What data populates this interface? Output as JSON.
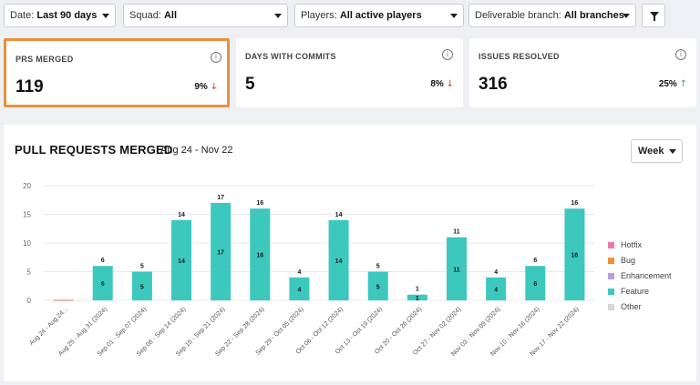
{
  "filters": {
    "date": {
      "label": "Date:",
      "value": "Last 90 days"
    },
    "squad": {
      "label": "Squad:",
      "value": "All"
    },
    "players": {
      "label": "Players:",
      "value": "All active players"
    },
    "branch": {
      "label": "Deliverable branch:",
      "value": "All branches"
    }
  },
  "cards": [
    {
      "label": "PRS MERGED",
      "value": "119",
      "delta": "9%",
      "direction": "down"
    },
    {
      "label": "DAYS WITH COMMITS",
      "value": "5",
      "delta": "8%",
      "direction": "down"
    },
    {
      "label": "ISSUES RESOLVED",
      "value": "316",
      "delta": "25%",
      "direction": "up"
    }
  ],
  "panel": {
    "title": "PULL REQUESTS MERGED",
    "range": "Aug 24 - Nov 22",
    "interval": "Week"
  },
  "legend": [
    {
      "name": "Hotfix",
      "color": "#e97bb0"
    },
    {
      "name": "Bug",
      "color": "#ef8f3b"
    },
    {
      "name": "Enhancement",
      "color": "#b99be6"
    },
    {
      "name": "Feature",
      "color": "#3cc8bd"
    },
    {
      "name": "Other",
      "color": "#d3d6da"
    }
  ],
  "chart_data": {
    "type": "bar",
    "stacked": true,
    "ylim": [
      0,
      20
    ],
    "yticks": [
      0,
      5,
      10,
      15,
      20
    ],
    "grid": true,
    "legend_position": "right",
    "categories": [
      "Aug 24 - Aug 24...",
      "Aug 25 - Aug 31 (2024)",
      "Sep 01 - Sep 07 (2024)",
      "Sep 08 - Sep 14 (2024)",
      "Sep 15 - Sep 21 (2024)",
      "Sep 22 - Sep 28 (2024)",
      "Sep 29 - Oct 05 (2024)",
      "Oct 06 - Oct 12 (2024)",
      "Oct 13 - Oct 19 (2024)",
      "Oct 20 - Oct 26 (2024)",
      "Oct 27 - Nov 02 (2024)",
      "Nov 03 - Nov 09 (2024)",
      "Nov 10 - Nov 16 (2024)",
      "Nov 17 - Nov 22 (2024)"
    ],
    "series": [
      {
        "name": "Hotfix",
        "values": [
          0,
          0,
          0,
          0,
          0,
          0,
          0,
          0,
          0,
          0,
          0,
          0,
          0,
          0
        ]
      },
      {
        "name": "Bug",
        "values": [
          0,
          0,
          0,
          0,
          0,
          0,
          0,
          0,
          0,
          0,
          0,
          0,
          0,
          0
        ]
      },
      {
        "name": "Enhancement",
        "values": [
          0,
          0,
          0,
          0,
          0,
          0,
          0,
          0,
          0,
          0,
          0,
          0,
          0,
          0
        ]
      },
      {
        "name": "Feature",
        "values": [
          0,
          6,
          5,
          14,
          17,
          16,
          4,
          14,
          5,
          1,
          11,
          4,
          6,
          16
        ]
      },
      {
        "name": "Other",
        "values": [
          0,
          0,
          0,
          0,
          0,
          0,
          0,
          0,
          0,
          0,
          0,
          0,
          0,
          0
        ]
      }
    ],
    "totals": [
      0,
      6,
      5,
      14,
      17,
      16,
      4,
      14,
      5,
      1,
      11,
      4,
      6,
      16
    ]
  }
}
